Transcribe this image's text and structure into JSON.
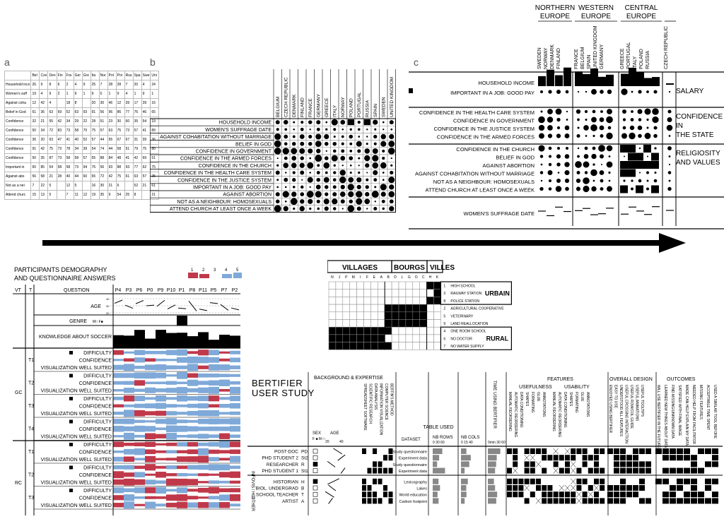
{
  "panel_a": {
    "letter": "a",
    "col_headers": [
      "Bel",
      "Cze",
      "Den",
      "Fin",
      "Fra",
      "Ger",
      "Gre",
      "Ita",
      "Nor",
      "Pol",
      "Por",
      "Rus",
      "Spa",
      "Swe",
      "Uni"
    ],
    "rows": [
      {
        "label": "Household inco",
        "values": [
          "26",
          "9",
          "8",
          "6",
          "2",
          "4",
          "9",
          "25",
          "7",
          "28",
          "28",
          "7",
          "20",
          "4",
          "24"
        ]
      },
      {
        "label": "Women's suff",
        "values": [
          "19",
          "4",
          "9",
          "2",
          "1",
          "9",
          "1",
          "9",
          "0",
          "1",
          "9",
          "4",
          "1",
          "9",
          "1"
        ]
      },
      {
        "label": "Against coha",
        "values": [
          "12",
          "42",
          "4",
          "",
          "18",
          "8",
          "",
          "20",
          "30",
          "46",
          "12",
          "39",
          "17",
          "39",
          "16"
        ]
      },
      {
        "label": "Belief in God",
        "values": [
          "61",
          "36",
          "63",
          "69",
          "52",
          "63",
          "93",
          "91",
          "56",
          "96",
          "86",
          "77",
          "76",
          "46",
          "65"
        ]
      },
      {
        "label": "Confidence",
        "values": [
          "32",
          "21",
          "55",
          "42",
          "34",
          "29",
          "22",
          "28",
          "51",
          "23",
          "30",
          "60",
          "35",
          "54",
          "19"
        ]
      },
      {
        "label": "Confidence",
        "values": [
          "50",
          "34",
          "72",
          "83",
          "73",
          "58",
          "70",
          "75",
          "57",
          "63",
          "75",
          "73",
          "57",
          "41",
          "89"
        ]
      },
      {
        "label": "Confidence",
        "values": [
          "36",
          "20",
          "63",
          "47",
          "41",
          "40",
          "52",
          "57",
          "44",
          "65",
          "67",
          "67",
          "31",
          "39",
          "36"
        ]
      },
      {
        "label": "Confidence",
        "values": [
          "91",
          "42",
          "75",
          "73",
          "78",
          "34",
          "39",
          "54",
          "74",
          "44",
          "58",
          "51",
          "79",
          "75",
          "80"
        ]
      },
      {
        "label": "Confidence",
        "values": [
          "50",
          "35",
          "87",
          "73",
          "58",
          "58",
          "57",
          "55",
          "88",
          "84",
          "48",
          "41",
          "42",
          "69",
          "51"
        ]
      },
      {
        "label": "Important in",
        "values": [
          "60",
          "85",
          "54",
          "58",
          "58",
          "73",
          "94",
          "76",
          "56",
          "93",
          "88",
          "93",
          "77",
          "62",
          "75"
        ]
      },
      {
        "label": "Against abo",
        "values": [
          "56",
          "58",
          "21",
          "28",
          "40",
          "44",
          "60",
          "65",
          "72",
          "42",
          "75",
          "61",
          "63",
          "57",
          "25"
        ]
      },
      {
        "label": "Not as a nei",
        "values": [
          "7",
          "22",
          "5",
          "",
          "12",
          "5",
          "",
          "16",
          "30",
          "21",
          "6",
          "",
          "52",
          "21",
          "61"
        ]
      },
      {
        "label": "Attend churc",
        "values": [
          "15",
          "13",
          "5",
          "",
          "7",
          "11",
          "12",
          "19",
          "35",
          "9",
          "54",
          "25",
          "8",
          "",
          "21"
        ]
      }
    ]
  },
  "panel_b": {
    "letter": "b",
    "countries": [
      "BELGIUM",
      "CZECH REPUBLIC",
      "DENMARK",
      "FINLAND",
      "FRANCE",
      "GERMANY",
      "GREECE",
      "ITALY",
      "NORWAY",
      "POLAND",
      "PORTUGAL",
      "RUSSIA",
      "SPAIN",
      "SWEDEN",
      "UNITED KINGDOM"
    ],
    "rows": [
      "HOUSEHOLD INCOME",
      "WOMEN'S SUFFRAGE DATE",
      "AGAINST COHABITATION WITHOUT MARRIAGE",
      "BELIEF IN GOD",
      "CONFIDENCE IN GOVERNMENT",
      "CONFIDENCE IN THE ARMED FORCES",
      "CONFIDENCE IN THE CHURCH",
      "CONFIDENCE IN THE HEALTH CARE SYSTEM",
      "CONFIDENCE IN THE JUSTICE SYSTEM",
      "IMPORTANT IN A JOB: GOOD PAY",
      "AGAINST ABORTION",
      "NOT AS A NEIGHBOUR: HOMOSEXUALS",
      "ATTEND CHURCH AT LEAST ONCE A WEEK"
    ]
  },
  "panel_c": {
    "letter": "c",
    "regions": [
      {
        "name": "NORTHERN\nEUROPE",
        "countries": [
          "SWEDEN",
          "NORWAY",
          "DENMARK",
          "FINLAND"
        ]
      },
      {
        "name": "WESTERN\nEUROPE",
        "countries": [
          "FRANCE",
          "BELGIUM",
          "SPAIN",
          "UNITED KINGDOM",
          "GERMANY"
        ]
      },
      {
        "name": "CENTRAL\nEUROPE",
        "countries": [
          "GREECE",
          "PORTUGAL",
          "ITALY",
          "POLAND",
          "RUSSIA"
        ]
      },
      {
        "name": "",
        "countries": [
          "CZECH REPUBLIC"
        ]
      }
    ],
    "groups": [
      {
        "label": "SALARY",
        "rows": [
          "HOUSEHOLD INCOME",
          "IMPORTANT IN A JOB: GOOD PAY"
        ]
      },
      {
        "label": "CONFIDENCE\nIN\nTHE STATE",
        "rows": [
          "CONFIDENCE IN THE HEALTH CARE SYSTEM",
          "CONFIDENCE IN GOVERNMENT",
          "CONFIDENCE IN THE JUSTICE SYSTEM",
          "CONFIDENCE IN THE ARMED FORCES"
        ]
      },
      {
        "label": "RELIGIOSITY\nAND VALUES",
        "rows": [
          "CONFIDENCE IN THE CHURCH",
          "BELIEF IN GOD",
          "AGAINST ABORTION",
          "AGAINST COHABITATION WITHOUT MARRIAGE",
          "NOT AS A NEIGHBOUR: HOMOSEXUALS",
          "ATTEND CHURCH AT LEAST ONCE A WEEK"
        ]
      },
      {
        "label": "",
        "rows": [
          "WOMEN'S SUFFRAGE DATE"
        ]
      }
    ]
  },
  "participants": {
    "title_line1": "PARTICIPANTS DEMOGRAPHY",
    "title_line2": "AND QUESTIONNAIRE ANSWERS",
    "scale": [
      "1",
      "2",
      "3",
      "4",
      "5"
    ],
    "col_vt": "VT",
    "col_t": "T",
    "col_question": "QUESTION",
    "participant_ids": [
      "P4",
      "P3",
      "P6",
      "P0",
      "P9",
      "P10",
      "P1",
      "P8",
      "P11",
      "P5",
      "P7",
      "P2"
    ],
    "age_label": "AGE",
    "age_ticks": [
      "40",
      "30",
      "20"
    ],
    "genre_label": "GENRE",
    "genre_legend": "M□ F■",
    "knowledge_label": "KNOWLEDGE ABOUT SOCCER",
    "vt_groups": [
      "GC",
      "RC"
    ],
    "tasks": [
      "T1",
      "T2",
      "T3",
      "T4",
      "T1",
      "T2",
      "T3"
    ],
    "questions": [
      "DIFFICULTY",
      "CONFIDENCE",
      "VISUALIZATION WELL SUITED"
    ]
  },
  "villages": {
    "headers": [
      "VILLAGES",
      "BOURGS",
      "VILLES"
    ],
    "col_letters": [
      "N",
      "J",
      "P",
      "M",
      "I",
      "F",
      "E",
      "A",
      "B",
      "D",
      "L",
      "G",
      "O",
      "C",
      "H",
      "K"
    ],
    "rows": [
      {
        "n": "1",
        "label": "HIGH SCHOOL"
      },
      {
        "n": "3",
        "label": "RAILWAY STATION"
      },
      {
        "n": "8",
        "label": "POLICE STATION"
      },
      {
        "n": "2",
        "label": "AGRICULTURAL COOPERATIVE"
      },
      {
        "n": "5",
        "label": "VETERINARY"
      },
      {
        "n": "9",
        "label": "LAND REALLOCATION"
      },
      {
        "n": "4",
        "label": "ONE ROOM SCHOOL"
      },
      {
        "n": "6",
        "label": "NO DOCTOR"
      },
      {
        "n": "7",
        "label": "NO WATER SUPPLY"
      }
    ],
    "group_labels": [
      "URBAIN",
      "",
      "RURAL"
    ]
  },
  "bertifier": {
    "title_line1": "BERTIFIER",
    "title_line2": "USER STUDY",
    "sections": {
      "background": "BACKGROUND & EXPERTISE",
      "features": "FEATURES",
      "usefulness": "USEFULNESS",
      "usability": "USABILITY",
      "overall": "OVERALL DESIGN",
      "outcomes": "OUTCOMES",
      "time": "TIME USING BERTIFIER",
      "table_used": "TABLE USED"
    },
    "sex_label": "SEX",
    "sex_legend": "F ■ M □",
    "age_label": "AGE",
    "age_ticks": [
      "20",
      "40"
    ],
    "dataset_label": "DATASET",
    "nb_rows_label": "NB ROWS",
    "nb_rows_ticks": [
      "0",
      "30",
      "60"
    ],
    "nb_cols_label": "NB COLS",
    "nb_cols_ticks": [
      "0",
      "15",
      "40"
    ],
    "time_ticks": "0min 30 60",
    "expertise_cols": [
      "SPREADSHEET SOFTWARE",
      "SCIENTIFIC RESEARCH",
      "DATA ANALYSIS",
      "INFORMATION VISUALIZATION",
      "COMPUTER SCIENCE",
      "BERTIN'S METHOD"
    ],
    "usefulness_cols": [
      "MANUAL REORDERING",
      "AUTOMATIC REORDERING",
      "DATA CONDITIONING",
      "SHAPES",
      "FORMATING",
      "GLUE",
      "ANNOTATIONS"
    ],
    "usability_cols": [
      "MANUAL REORDERING",
      "AUTOMATIC REORDERING",
      "DATA CONDITIONING",
      "SHAPES",
      "FORMATING",
      "GLUE",
      "ANNOTATIONS"
    ],
    "overall_cols": [
      "ENJOYED USING BERTIFIER",
      "EASY TO USE",
      "UNDERSTOOD ALL FEATURES",
      "USEFUL CROSSING INTERACTION",
      "USEFUL ROW/COL GUIDE",
      "USEFUL ANIMATIONS",
      "USEFUL TOOLTIPS"
    ],
    "outcomes_cols": [
      "WILL USE BERTIFIER IN THE FUTURE",
      "LEARNED NEW THINGS ABOUT DATA",
      "FIND MISSING/UNKNOWN DATA",
      "SATISFIED WITH FINAL IMAGE",
      "MADE CAN HELP EXPLAIN MY DATA",
      "NEEDED HELP FROM FACILITATOR",
      "MISSING FEATURES",
      "ACCEPTABLE TIME SPENT",
      "USED A SIMILAR TOOL BEFORE"
    ],
    "group_labels": [
      "INFOVIS / HCI",
      "OTHER"
    ],
    "participants": [
      {
        "role": "POST-DOC",
        "code": "PD",
        "dataset": "Study questionnaire"
      },
      {
        "role": "PHD STUDENT 2",
        "code": "St2",
        "dataset": "Experiment data"
      },
      {
        "role": "RESEARCHER",
        "code": "R",
        "dataset": "Study questionnaire"
      },
      {
        "role": "PHD STUDENT 1",
        "code": "St1",
        "dataset": "Experiment data"
      },
      {
        "role": "HISTORIAN",
        "code": "H",
        "dataset": "Lexicography"
      },
      {
        "role": "BIOL. UNDERGRAD",
        "code": "B",
        "dataset": "Lakes"
      },
      {
        "role": "SCHOOL TEACHER",
        "code": "T",
        "dataset": "World education"
      },
      {
        "role": "ARTIST",
        "code": "A",
        "dataset": "Carbon footprint"
      }
    ]
  },
  "colors": {
    "red": "#c0394a",
    "blue": "#7fa9d8",
    "black": "#000000",
    "grid": "#999999"
  }
}
